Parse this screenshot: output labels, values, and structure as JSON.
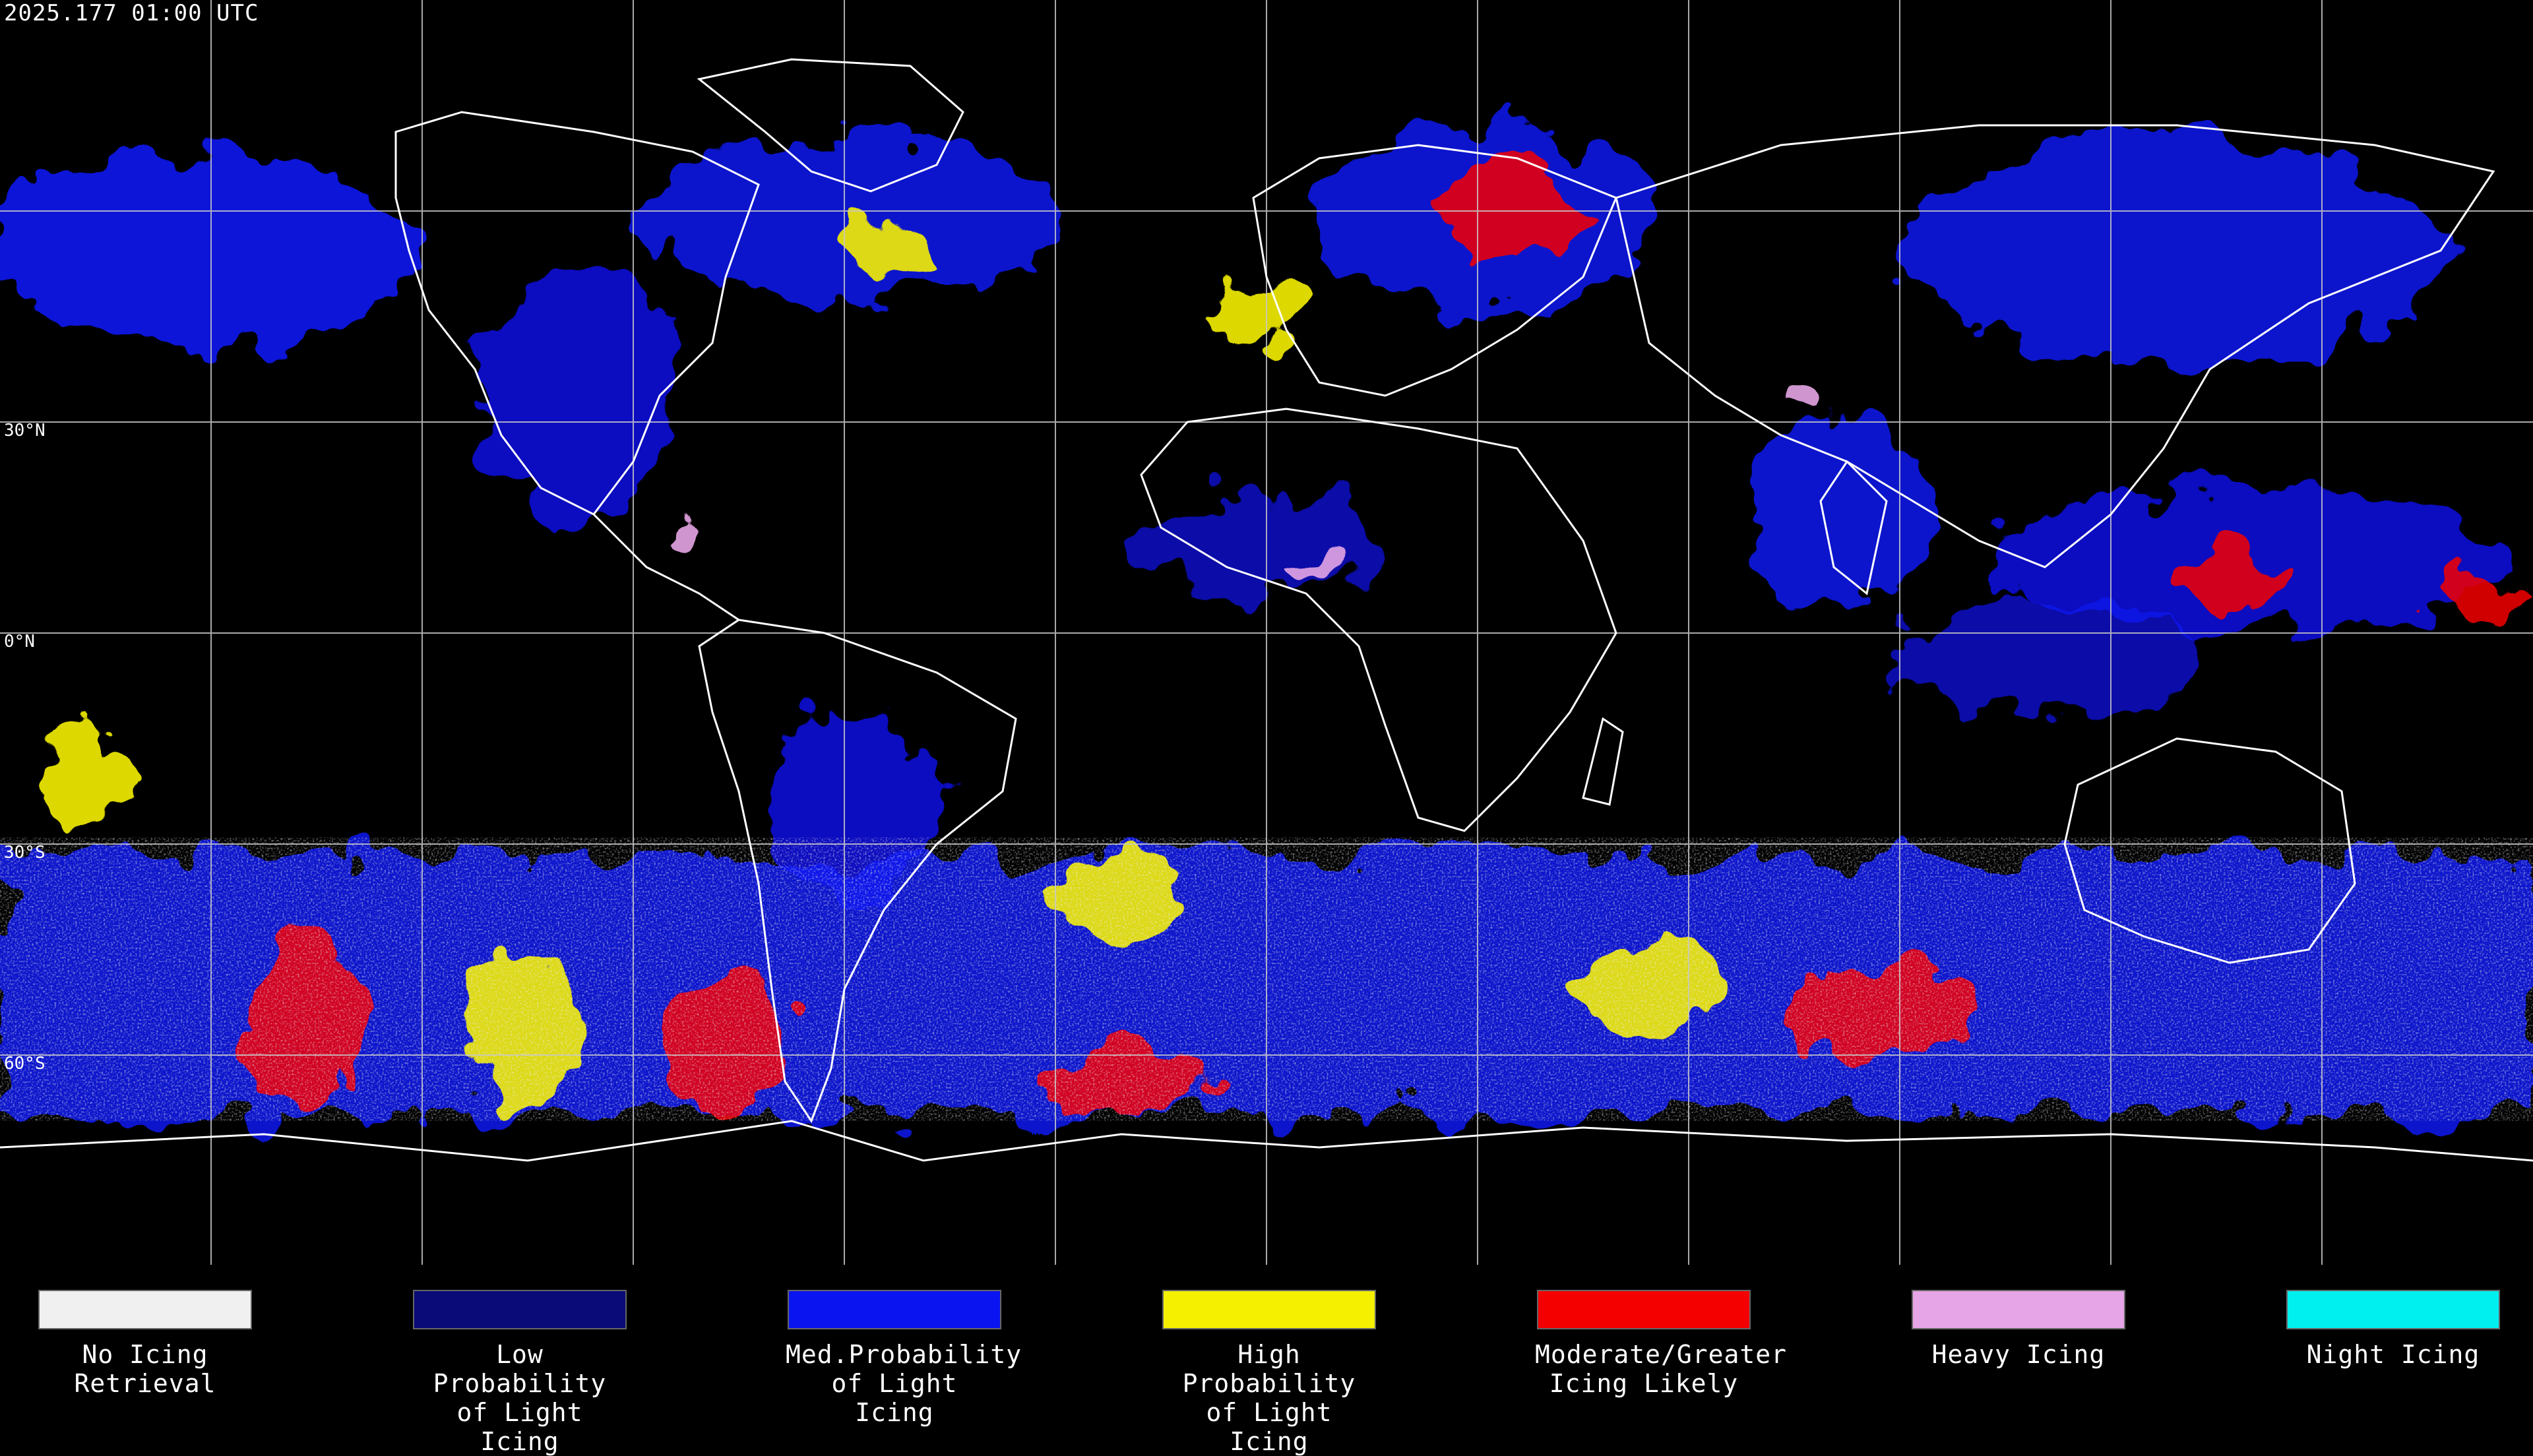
{
  "timestamp": "2025.177 01:00 UTC",
  "lat_labels": [
    "30°N",
    "0°N",
    "30°S",
    "60°S"
  ],
  "legend": [
    {
      "label": "No Icing\nRetrieval",
      "color": "#f0f0f0"
    },
    {
      "label": "Low Probability\nof Light Icing",
      "color": "#0a0a78"
    },
    {
      "label": "Med.Probability\nof Light Icing",
      "color": "#0a14f0"
    },
    {
      "label": "High Probability\nof Light Icing",
      "color": "#f5f000"
    },
    {
      "label": "Moderate/Greater\nIcing Likely",
      "color": "#f50000"
    },
    {
      "label": "Heavy Icing",
      "color": "#e6a5e6"
    },
    {
      "label": "Night Icing",
      "color": "#00f0f0"
    }
  ]
}
